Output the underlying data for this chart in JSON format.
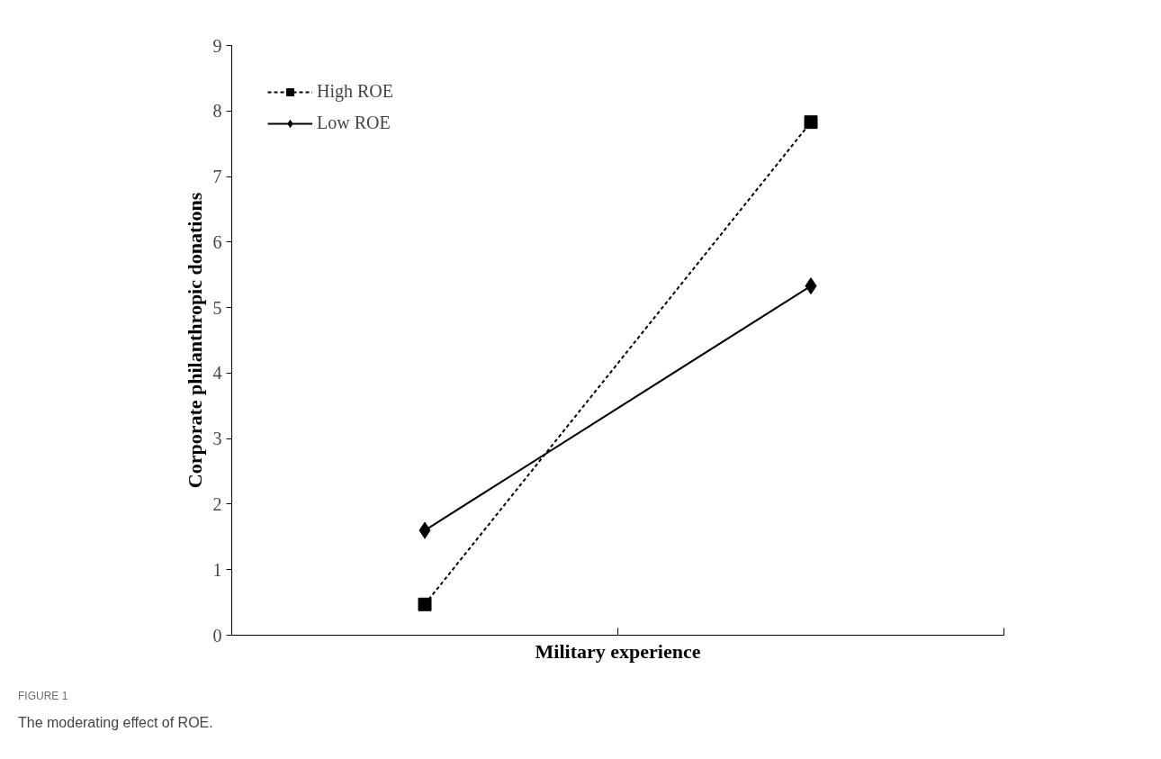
{
  "chart_data": {
    "type": "line",
    "categories": [
      null,
      null
    ],
    "series": [
      {
        "name": "High ROE",
        "color": "#000000",
        "values": [
          0.47,
          7.83
        ],
        "marker": "square",
        "line_style": "dashed"
      },
      {
        "name": "Low ROE",
        "color": "#000000",
        "values": [
          1.6,
          5.33
        ],
        "marker": "diamond",
        "line_style": "solid"
      }
    ],
    "xlabel": "Military experience",
    "ylabel": "Corporate philanthropic donations",
    "ylim": [
      0,
      9
    ],
    "yticks": [
      0,
      1,
      2,
      3,
      4,
      5,
      6,
      7,
      8,
      9
    ],
    "grid": false,
    "legend": "top left",
    "annotations": [
      "FIGURE 1",
      "The moderating effect of ROE."
    ]
  }
}
